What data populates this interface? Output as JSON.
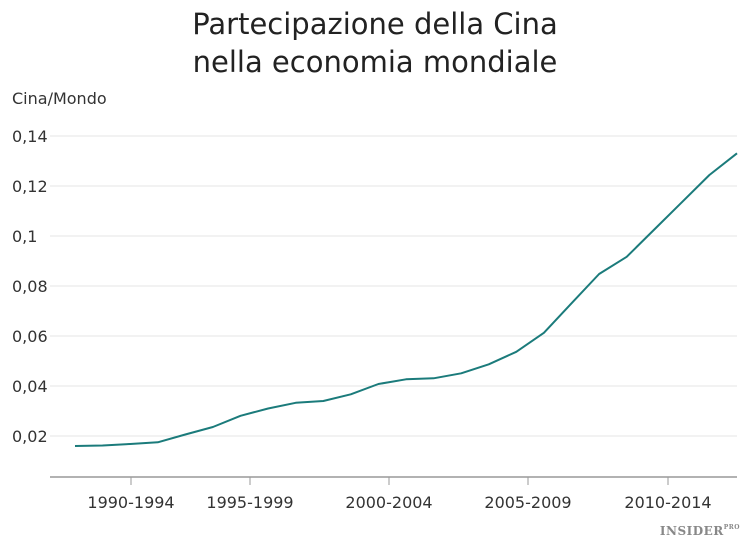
{
  "chart_data": {
    "type": "line",
    "title": "Partecipazione della Cina nella economia mondiale",
    "title_lines": [
      "Partecipazione della Cina",
      "nella economia mondiale"
    ],
    "ylabel": "Cina/Mondo",
    "xlabel": "",
    "x_tick_labels": [
      "1990-1994",
      "1995-1999",
      "2000-2004",
      "2005-2009",
      "2010-2014"
    ],
    "y_ticks": [
      0.02,
      0.04,
      0.06,
      0.08,
      0.1,
      0.12,
      0.14
    ],
    "y_tick_labels": [
      "0,02",
      "0,04",
      "0,06",
      "0,08",
      "0,1",
      "0,12",
      "0,14"
    ],
    "ylim": [
      0.02,
      0.14
    ],
    "grid": true,
    "series": [
      {
        "color": "#1b7b7b",
        "values": [
          0.016,
          0.0162,
          0.0168,
          0.0175,
          0.0206,
          0.0236,
          0.0281,
          0.031,
          0.0333,
          0.034,
          0.0367,
          0.0408,
          0.0427,
          0.0431,
          0.0451,
          0.0487,
          0.0537,
          0.0613,
          0.0731,
          0.0848,
          0.0917,
          0.1026,
          0.1135,
          0.1244,
          0.1331
        ]
      }
    ]
  },
  "watermark": {
    "text": "INSIDER",
    "suffix": "PRO"
  }
}
